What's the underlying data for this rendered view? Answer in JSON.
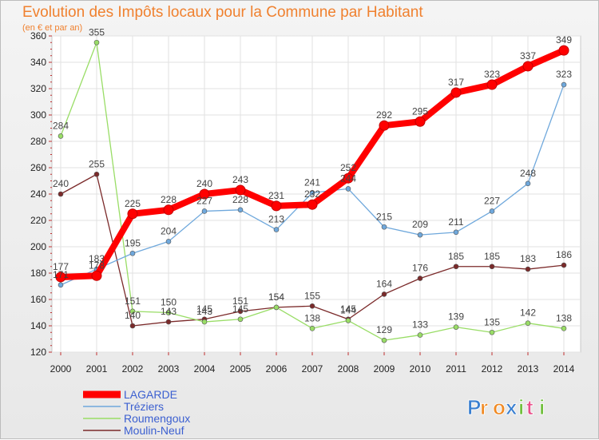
{
  "chart_data": {
    "type": "line",
    "title": "Evolution des Impôts locaux pour la Commune par Habitant",
    "subtitle": "(en € et par an)",
    "xlabel": "",
    "ylabel": "",
    "x": [
      "2000",
      "2001",
      "2002",
      "2003",
      "2004",
      "2005",
      "2006",
      "2007",
      "2008",
      "2009",
      "2010",
      "2011",
      "2012",
      "2013",
      "2014"
    ],
    "ylim": [
      120,
      360
    ],
    "yticks": [
      120,
      140,
      160,
      180,
      200,
      220,
      240,
      260,
      280,
      300,
      320,
      340,
      360
    ],
    "grid": true,
    "legend_position": "bottom-left",
    "series": [
      {
        "name": "LAGARDE",
        "color": "#ff0000",
        "values": [
          177,
          178,
          225,
          228,
          240,
          243,
          231,
          232,
          252,
          292,
          295,
          317,
          323,
          337,
          349
        ]
      },
      {
        "name": "Tréziers",
        "color": "#6fa8dc",
        "values": [
          171,
          183,
          195,
          204,
          227,
          228,
          213,
          241,
          244,
          215,
          209,
          211,
          227,
          248,
          323
        ]
      },
      {
        "name": "Roumengoux",
        "color": "#99dd66",
        "values": [
          284,
          355,
          151,
          150,
          143,
          145,
          154,
          138,
          144,
          129,
          133,
          139,
          135,
          142,
          138
        ]
      },
      {
        "name": "Moulin-Neuf",
        "color": "#7b2a2a",
        "values": [
          240,
          255,
          140,
          143,
          145,
          151,
          154,
          155,
          145,
          164,
          176,
          185,
          185,
          183,
          186
        ]
      }
    ]
  },
  "logo": {
    "text": "Proxiti"
  }
}
